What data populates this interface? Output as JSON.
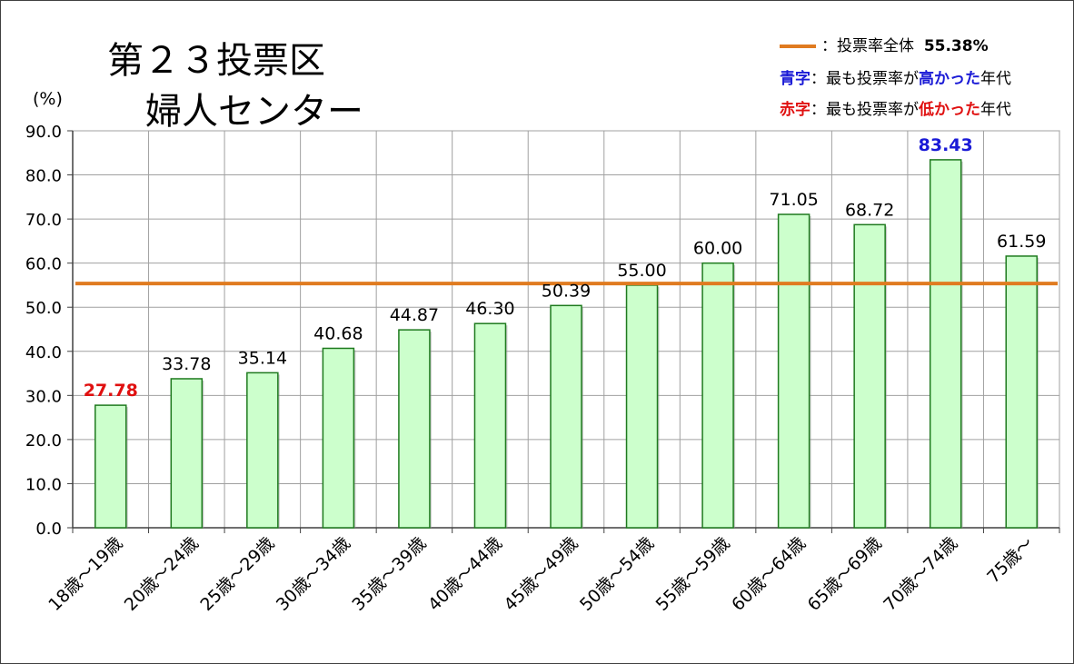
{
  "title_line1": "第２３投票区",
  "title_line2": "婦人センター",
  "ylabel": "(%)",
  "legend": {
    "overall_label": "：投票率全体",
    "overall_value": "55.38%",
    "high_key": "青字",
    "high_text_a": "：最も投票率が",
    "high_emph": "高かった",
    "high_text_b": "年代",
    "low_key": "赤字",
    "low_text_a": "：最も投票率が",
    "low_emph": "低かった",
    "low_text_b": "年代"
  },
  "colors": {
    "bar_fill": "#CCFFCC",
    "bar_stroke": "#1E7A1E",
    "avg_line": "#E07B20",
    "high": "#1A1AD6",
    "low": "#E01010",
    "grid": "#A0A0A0"
  },
  "chart_data": {
    "type": "bar",
    "title": "第２３投票区 婦人センター",
    "ylabel": "(%)",
    "xlabel": "",
    "ylim": [
      0,
      90
    ],
    "yticks": [
      "0.0",
      "10.0",
      "20.0",
      "30.0",
      "40.0",
      "50.0",
      "60.0",
      "70.0",
      "80.0",
      "90.0"
    ],
    "grid": true,
    "categories": [
      "18歳～19歳",
      "20歳～24歳",
      "25歳～29歳",
      "30歳～34歳",
      "35歳～39歳",
      "40歳～44歳",
      "45歳～49歳",
      "50歳～54歳",
      "55歳～59歳",
      "60歳～64歳",
      "65歳～69歳",
      "70歳～74歳",
      "75歳～"
    ],
    "values": [
      27.78,
      33.78,
      35.14,
      40.68,
      44.87,
      46.3,
      50.39,
      55.0,
      60.0,
      71.05,
      68.72,
      83.43,
      61.59
    ],
    "value_labels": [
      "27.78",
      "33.78",
      "35.14",
      "40.68",
      "44.87",
      "46.30",
      "50.39",
      "55.00",
      "60.00",
      "71.05",
      "68.72",
      "83.43",
      "61.59"
    ],
    "reference_line": 55.38,
    "highlight_low_index": 0,
    "highlight_high_index": 11,
    "legend_position": "top-right"
  }
}
